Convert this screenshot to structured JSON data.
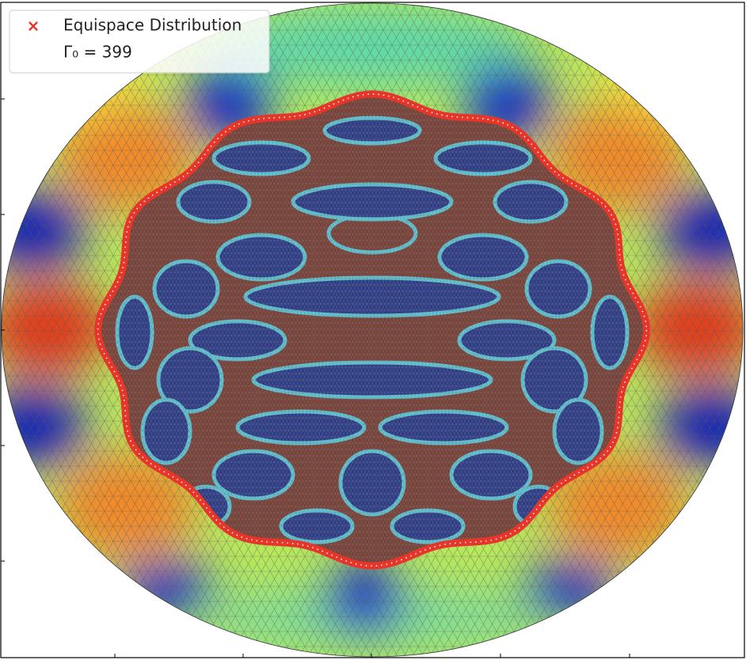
{
  "legend": {
    "entries": [
      {
        "marker": "×",
        "label": "Equispace Distribution"
      },
      {
        "label": "Γ₀ = 399"
      }
    ]
  }
}
